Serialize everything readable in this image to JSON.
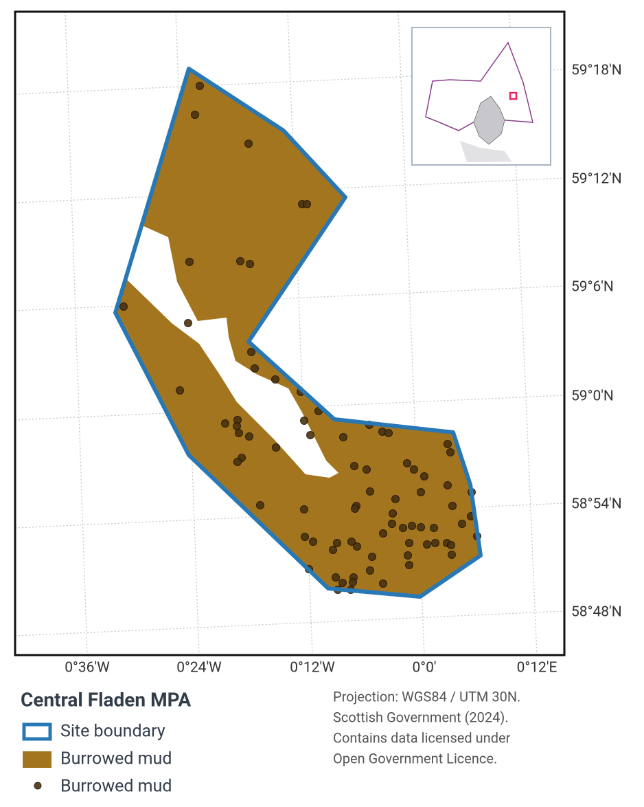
{
  "map": {
    "lon_labels": [
      "0°36'W",
      "0°24'W",
      "0°12'W",
      "0°0'",
      "0°12'E"
    ],
    "lat_labels": [
      "59°18'N",
      "59°12'N",
      "59°6'N",
      "59°0'N",
      "58°54'N",
      "58°48'N"
    ]
  },
  "legend": {
    "title": "Central Fladen MPA",
    "items": [
      "Site boundary",
      "Burrowed mud",
      "Burrowed mud"
    ]
  },
  "note": {
    "lines": [
      "Projection: WGS84 / UTM 30N.",
      "Scottish Government (2024).",
      "Contains data licensed under",
      "Open Government Licence."
    ]
  }
}
